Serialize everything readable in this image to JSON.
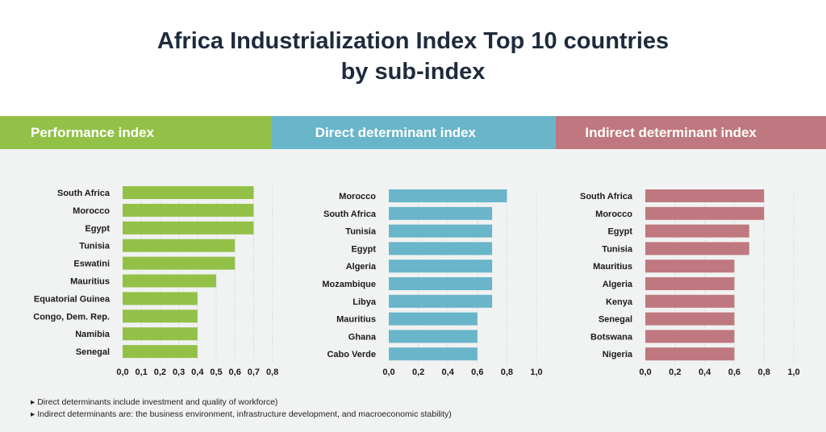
{
  "title_line1": "Africa Industrialization Index Top 10 countries",
  "title_line2": "by sub-index",
  "colors": {
    "performance": "#93c148",
    "direct": "#69b5ca",
    "indirect": "#bf787f",
    "background": "#f1f2f2",
    "title": "#1f2b3c"
  },
  "chart_data": [
    {
      "type": "bar",
      "orientation": "horizontal",
      "title": "Performance index",
      "categories": [
        "South Africa",
        "Morocco",
        "Egypt",
        "Tunisia",
        "Eswatini",
        "Mauritius",
        "Equatorial Guinea",
        "Congo, Dem. Rep.",
        "Namibia",
        "Senegal"
      ],
      "values": [
        0.7,
        0.7,
        0.7,
        0.6,
        0.6,
        0.5,
        0.4,
        0.4,
        0.4,
        0.4
      ],
      "xlim": [
        0,
        0.8
      ],
      "ticks": [
        "0,0",
        "0,1",
        "0,2",
        "0,3",
        "0,4",
        "0,5",
        "0,6",
        "0,7",
        "0,8"
      ],
      "tick_values": [
        0,
        0.1,
        0.2,
        0.3,
        0.4,
        0.5,
        0.6,
        0.7,
        0.8
      ],
      "grid": true
    },
    {
      "type": "bar",
      "orientation": "horizontal",
      "title": "Direct determinant index",
      "categories": [
        "Morocco",
        "South Africa",
        "Tunisia",
        "Egypt",
        "Algeria",
        "Mozambique",
        "Libya",
        "Mauritius",
        "Ghana",
        "Cabo Verde"
      ],
      "values": [
        0.8,
        0.7,
        0.7,
        0.7,
        0.7,
        0.7,
        0.7,
        0.6,
        0.6,
        0.6
      ],
      "xlim": [
        0,
        1.0
      ],
      "ticks": [
        "0,0",
        "0,2",
        "0,4",
        "0,6",
        "0,8",
        "1,0"
      ],
      "tick_values": [
        0,
        0.2,
        0.4,
        0.6,
        0.8,
        1.0
      ],
      "grid": true
    },
    {
      "type": "bar",
      "orientation": "horizontal",
      "title": "Indirect determinant index",
      "categories": [
        "South Africa",
        "Morocco",
        "Egypt",
        "Tunisia",
        "Mauritius",
        "Algeria",
        "Kenya",
        "Senegal",
        "Botswana",
        "Nigeria"
      ],
      "values": [
        0.8,
        0.8,
        0.7,
        0.7,
        0.6,
        0.6,
        0.6,
        0.6,
        0.6,
        0.6
      ],
      "xlim": [
        0,
        1.0
      ],
      "ticks": [
        "0,0",
        "0,2",
        "0,4",
        "0,6",
        "0,8",
        "1,0"
      ],
      "tick_values": [
        0,
        0.2,
        0.4,
        0.6,
        0.8,
        1.0
      ],
      "grid": true
    }
  ],
  "notes": [
    "▸ Direct determinants include investment and quality of workforce)",
    "▸ Indirect determinants are: the business environment, infrastructure development, and macroeconomic stability)"
  ]
}
